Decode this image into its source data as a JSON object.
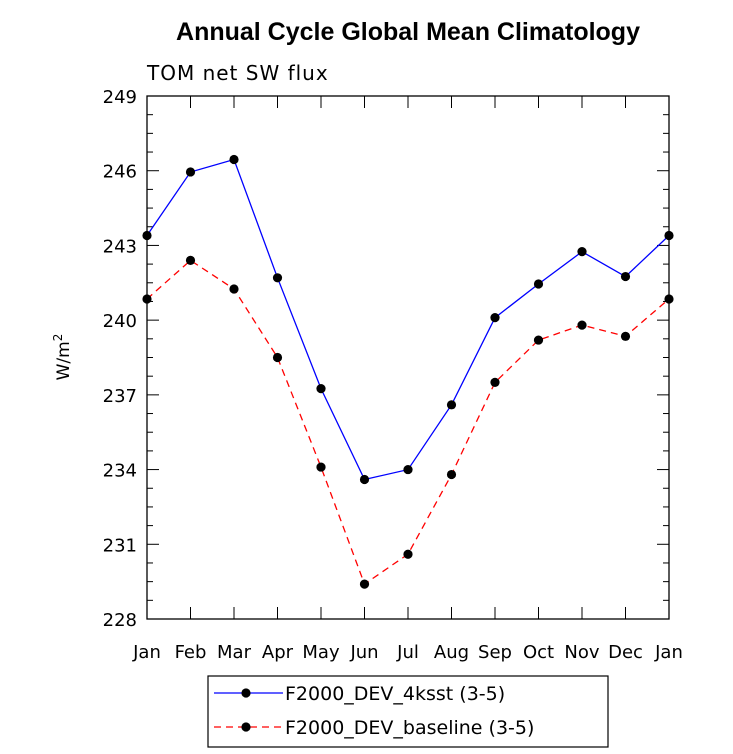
{
  "chart_data": {
    "type": "line",
    "title": "Annual Cycle Global Mean Climatology",
    "subtitle": "TOM net SW flux",
    "ylabel": "W/m",
    "ylabel_sup": "2",
    "ylim": [
      228,
      249
    ],
    "yticks": [
      228,
      231,
      234,
      237,
      240,
      243,
      246,
      249
    ],
    "categories": [
      "Jan",
      "Feb",
      "Mar",
      "Apr",
      "May",
      "Jun",
      "Jul",
      "Aug",
      "Sep",
      "Oct",
      "Nov",
      "Dec",
      "Jan"
    ],
    "grid": false,
    "legend_position": "bottom",
    "series": [
      {
        "name": "F2000_DEV_4ksst (3-5)",
        "color": "#0000ff",
        "dash": "solid",
        "marker": "filled-circle",
        "values": [
          243.4,
          245.95,
          246.45,
          241.7,
          237.25,
          233.6,
          234.0,
          236.6,
          240.1,
          241.45,
          242.75,
          241.75,
          243.4
        ]
      },
      {
        "name": "F2000_DEV_baseline (3-5)",
        "color": "#ff0000",
        "dash": "dashed",
        "marker": "filled-circle",
        "values": [
          240.85,
          242.4,
          241.25,
          238.5,
          234.1,
          229.4,
          230.6,
          233.8,
          237.5,
          239.2,
          239.8,
          239.35,
          240.85
        ]
      }
    ]
  }
}
